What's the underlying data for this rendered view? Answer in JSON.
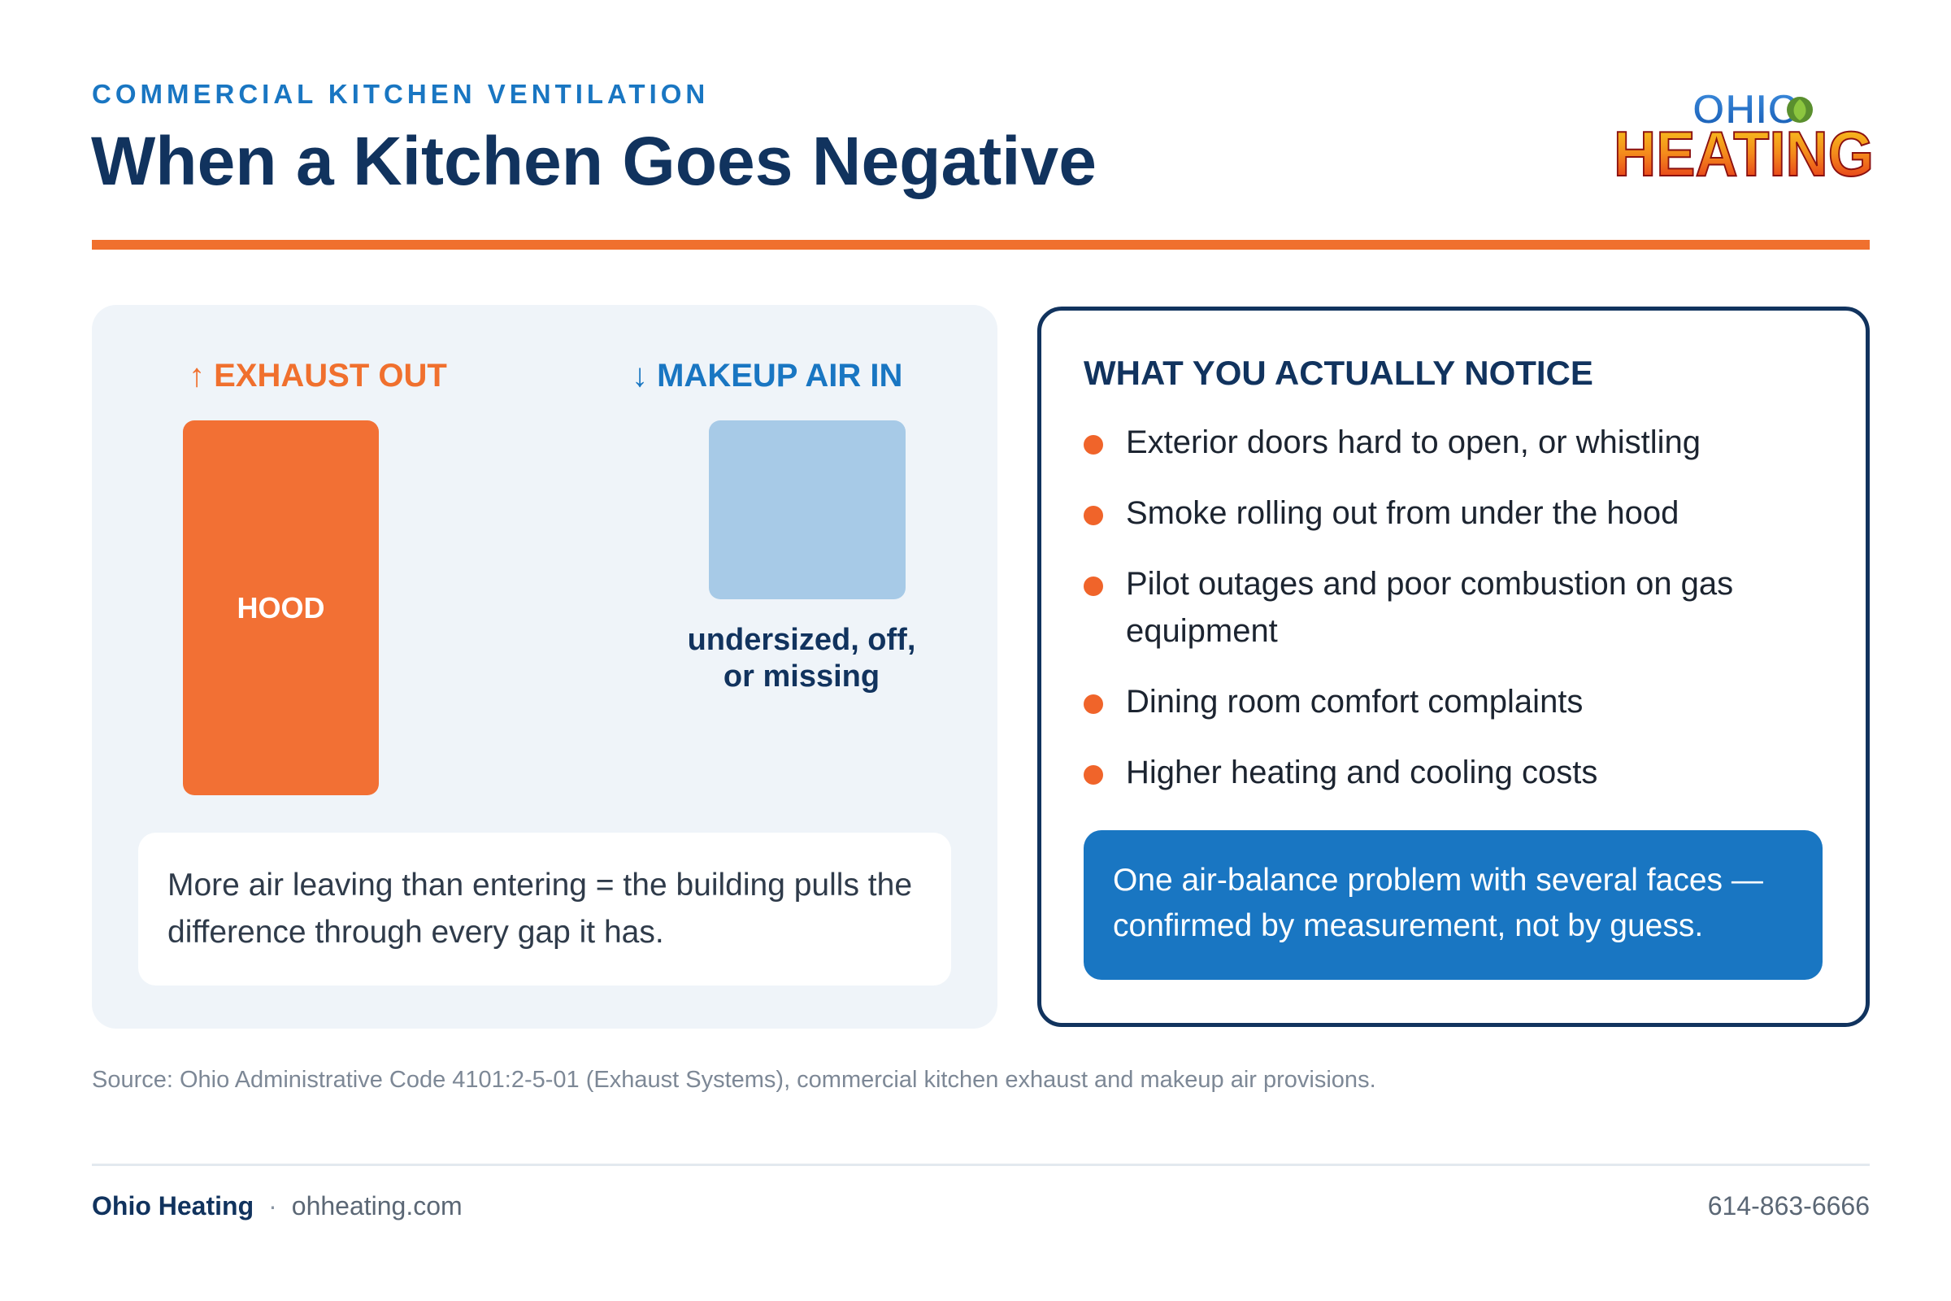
{
  "header": {
    "eyebrow": "COMMERCIAL KITCHEN VENTILATION",
    "title": "When a Kitchen Goes Negative",
    "logo": {
      "line1": "OHIO",
      "line2": "HEATING",
      "leaf_icon": "leaf-icon"
    },
    "accent_color": "#f0702e"
  },
  "diagram": {
    "exhaust_label": "↑ EXHAUST OUT",
    "makeup_label": "↓ MAKEUP AIR IN",
    "hood_label": "HOOD",
    "makeup_caption": "undersized, off, or missing",
    "equation": "More air leaving than entering = the building pulls the difference through every gap it has.",
    "colors": {
      "exhaust": "#f27034",
      "makeup": "#a7cae7"
    }
  },
  "notice": {
    "heading": "WHAT YOU ACTUALLY NOTICE",
    "items": [
      "Exterior doors hard to open, or whistling",
      "Smoke rolling out from under the hood",
      "Pilot outages and poor combustion on gas equipment",
      "Dining room comfort complaints",
      "Higher heating and cooling costs"
    ],
    "callout": "One air-balance problem with several faces — confirmed by measurement, not by guess.",
    "callout_color": "#1976c2"
  },
  "source": "Source: Ohio Administrative Code 4101:2-5-01 (Exhaust Systems), commercial kitchen exhaust and makeup air provisions.",
  "footer": {
    "brand": "Ohio Heating",
    "separator": "·",
    "website": "ohheating.com",
    "phone": "614-863-6666"
  }
}
